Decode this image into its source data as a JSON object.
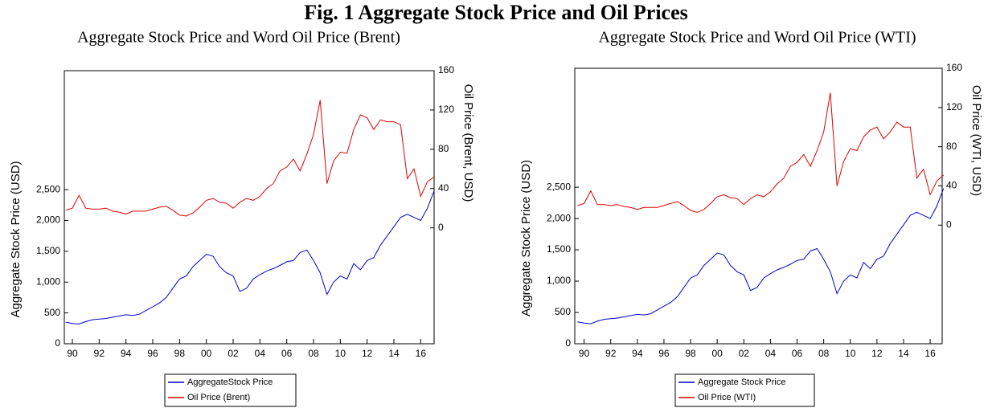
{
  "title": "Fig. 1 Aggregate Stock Price and Oil Prices",
  "chart_data": [
    {
      "type": "line",
      "title": "Aggregate Stock Price and Word Oil Price (Brent)",
      "ylabel": "Aggregate Stock Price (USD)",
      "y2label": "Oil Price (Brent, USD)",
      "x": [
        1989.5,
        1990,
        1990.5,
        1991,
        1991.5,
        1992,
        1992.5,
        1993,
        1993.5,
        1994,
        1994.5,
        1995,
        1995.5,
        1996,
        1996.5,
        1997,
        1997.5,
        1998,
        1998.5,
        1999,
        1999.5,
        2000,
        2000.5,
        2001,
        2001.5,
        2002,
        2002.5,
        2003,
        2003.5,
        2004,
        2004.5,
        2005,
        2005.5,
        2006,
        2006.5,
        2007,
        2007.5,
        2008,
        2008.5,
        2009,
        2009.5,
        2010,
        2010.5,
        2011,
        2011.5,
        2012,
        2012.5,
        2013,
        2013.5,
        2014,
        2014.5,
        2015,
        2015.5,
        2016,
        2016.5,
        2017
      ],
      "series": [
        {
          "name": "AggregateStock Price",
          "color": "#0000cc",
          "axis": "y",
          "values": [
            350,
            330,
            320,
            360,
            390,
            400,
            410,
            430,
            450,
            470,
            460,
            480,
            540,
            600,
            660,
            750,
            900,
            1050,
            1100,
            1250,
            1350,
            1450,
            1420,
            1250,
            1150,
            1100,
            850,
            900,
            1050,
            1120,
            1180,
            1220,
            1270,
            1330,
            1350,
            1480,
            1520,
            1350,
            1150,
            800,
            1000,
            1100,
            1050,
            1300,
            1200,
            1350,
            1400,
            1600,
            1750,
            1900,
            2050,
            2100,
            2050,
            2000,
            2200,
            2480
          ]
        },
        {
          "name": "Oil Price (Brent)",
          "color": "#dd0000",
          "axis": "y2",
          "values": [
            18,
            20,
            33,
            20,
            19,
            19,
            20,
            17,
            16,
            14,
            17,
            17,
            17,
            19,
            21,
            22,
            18,
            13,
            12,
            15,
            21,
            28,
            30,
            26,
            25,
            20,
            26,
            30,
            28,
            32,
            40,
            45,
            58,
            62,
            70,
            58,
            75,
            95,
            130,
            45,
            68,
            77,
            76,
            100,
            115,
            112,
            100,
            110,
            108,
            108,
            105,
            50,
            60,
            32,
            47,
            52
          ]
        }
      ],
      "xlim": [
        1989.4,
        2017
      ],
      "xticks": [
        {
          "value": 1990,
          "label": "90"
        },
        {
          "value": 1992,
          "label": "92"
        },
        {
          "value": 1994,
          "label": "94"
        },
        {
          "value": 1996,
          "label": "96"
        },
        {
          "value": 1998,
          "label": "98"
        },
        {
          "value": 2000,
          "label": "00"
        },
        {
          "value": 2002,
          "label": "02"
        },
        {
          "value": 2004,
          "label": "04"
        },
        {
          "value": 2006,
          "label": "06"
        },
        {
          "value": 2008,
          "label": "08"
        },
        {
          "value": 2010,
          "label": "10"
        },
        {
          "value": 2012,
          "label": "12"
        },
        {
          "value": 2014,
          "label": "14"
        },
        {
          "value": 2016,
          "label": "16"
        }
      ],
      "ylim": [
        0,
        4430
      ],
      "yticks": [
        0,
        500,
        {
          "value": 1000,
          "label": "1,000"
        },
        {
          "value": 1500,
          "label": "1,500"
        },
        {
          "value": 2000,
          "label": "2,000"
        },
        {
          "value": 2500,
          "label": "2,500"
        }
      ],
      "y2lim": [
        -118,
        160
      ],
      "y2ticks": [
        0,
        40,
        80,
        120,
        160
      ]
    },
    {
      "type": "line",
      "title": "Aggregate Stock Price and Word Oil Price (WTI)",
      "ylabel": "Aggregate Stock Price (USD)",
      "y2label": "Oil Price (WTI, USD)",
      "x": [
        1989.5,
        1990,
        1990.5,
        1991,
        1991.5,
        1992,
        1992.5,
        1993,
        1993.5,
        1994,
        1994.5,
        1995,
        1995.5,
        1996,
        1996.5,
        1997,
        1997.5,
        1998,
        1998.5,
        1999,
        1999.5,
        2000,
        2000.5,
        2001,
        2001.5,
        2002,
        2002.5,
        2003,
        2003.5,
        2004,
        2004.5,
        2005,
        2005.5,
        2006,
        2006.5,
        2007,
        2007.5,
        2008,
        2008.5,
        2009,
        2009.5,
        2010,
        2010.5,
        2011,
        2011.5,
        2012,
        2012.5,
        2013,
        2013.5,
        2014,
        2014.5,
        2015,
        2015.5,
        2016,
        2016.5,
        2017
      ],
      "series": [
        {
          "name": "Aggregate Stock Price",
          "color": "#0000cc",
          "axis": "y",
          "values": [
            350,
            330,
            320,
            360,
            390,
            400,
            410,
            430,
            450,
            470,
            460,
            480,
            540,
            600,
            660,
            750,
            900,
            1050,
            1100,
            1250,
            1350,
            1450,
            1420,
            1250,
            1150,
            1100,
            850,
            900,
            1050,
            1120,
            1180,
            1220,
            1270,
            1330,
            1350,
            1480,
            1520,
            1350,
            1150,
            800,
            1000,
            1100,
            1050,
            1300,
            1200,
            1350,
            1400,
            1600,
            1750,
            1900,
            2050,
            2100,
            2050,
            2000,
            2200,
            2480
          ]
        },
        {
          "name": "Oil Price (WTI)",
          "color": "#dd0000",
          "axis": "y2",
          "values": [
            20,
            22,
            35,
            21,
            21,
            20,
            21,
            19,
            18,
            16,
            18,
            18,
            18,
            20,
            22,
            24,
            20,
            15,
            13,
            16,
            22,
            29,
            31,
            28,
            27,
            21,
            27,
            31,
            29,
            34,
            42,
            48,
            60,
            64,
            72,
            60,
            76,
            95,
            135,
            40,
            65,
            78,
            76,
            90,
            97,
            100,
            88,
            95,
            105,
            100,
            100,
            48,
            57,
            31,
            45,
            51
          ]
        }
      ],
      "xlim": [
        1989.3,
        2016.9
      ],
      "xticks": [
        {
          "value": 1990,
          "label": "90"
        },
        {
          "value": 1992,
          "label": "92"
        },
        {
          "value": 1994,
          "label": "94"
        },
        {
          "value": 1996,
          "label": "96"
        },
        {
          "value": 1998,
          "label": "98"
        },
        {
          "value": 2000,
          "label": "00"
        },
        {
          "value": 2002,
          "label": "02"
        },
        {
          "value": 2004,
          "label": "04"
        },
        {
          "value": 2006,
          "label": "06"
        },
        {
          "value": 2008,
          "label": "08"
        },
        {
          "value": 2010,
          "label": "10"
        },
        {
          "value": 2012,
          "label": "12"
        },
        {
          "value": 2014,
          "label": "14"
        },
        {
          "value": 2016,
          "label": "16"
        }
      ],
      "ylim": [
        0,
        4400
      ],
      "yticks": [
        0,
        500,
        {
          "value": 1000,
          "label": "1,000"
        },
        {
          "value": 1500,
          "label": "1,500"
        },
        {
          "value": 2000,
          "label": "2,000"
        },
        {
          "value": 2500,
          "label": "2,500"
        }
      ],
      "y2lim": [
        -121,
        160
      ],
      "y2ticks": [
        0,
        40,
        80,
        120,
        160
      ]
    }
  ]
}
